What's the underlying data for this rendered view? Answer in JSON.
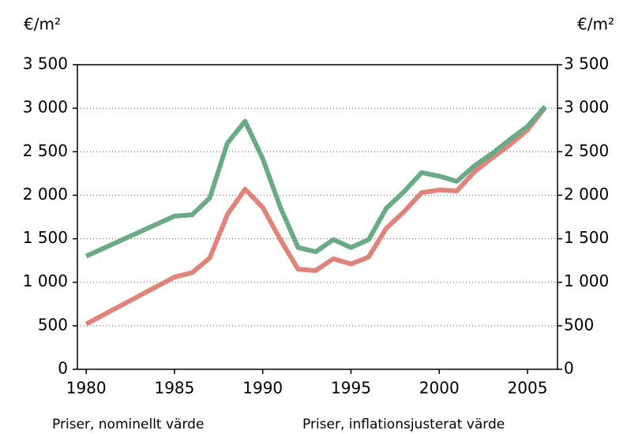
{
  "chart_data": {
    "type": "line",
    "y_label": "€/m²",
    "y2_label": "€/m²",
    "x": [
      1980,
      1985,
      1986,
      1987,
      1988,
      1989,
      1990,
      1991,
      1992,
      1993,
      1994,
      1995,
      1996,
      1997,
      1998,
      1999,
      2000,
      2001,
      2002,
      2003,
      2004,
      2005,
      2006
    ],
    "series": [
      {
        "name": "Priser, nominellt värde",
        "color": "#e0837a",
        "values": [
          520,
          1060,
          1110,
          1280,
          1780,
          2070,
          1860,
          1490,
          1150,
          1135,
          1270,
          1210,
          1290,
          1620,
          1810,
          2030,
          2060,
          2050,
          2270,
          2430,
          2580,
          2750,
          3010
        ]
      },
      {
        "name": "Priser, inflationsjusterat värde",
        "color": "#6aaa84",
        "values": [
          1300,
          1760,
          1775,
          1970,
          2600,
          2850,
          2420,
          1860,
          1400,
          1350,
          1490,
          1400,
          1490,
          1850,
          2040,
          2260,
          2220,
          2160,
          2340,
          2480,
          2640,
          2790,
          3020
        ]
      }
    ],
    "xlim": [
      1979.5,
      2006.7
    ],
    "xticks": [
      1980,
      1985,
      1990,
      1995,
      2000,
      2005
    ],
    "ylim": [
      0,
      3500
    ],
    "yticks": [
      0,
      500,
      {
        "value": 1000,
        "label": "1 000"
      },
      {
        "value": 1500,
        "label": "1 500"
      },
      {
        "value": 2000,
        "label": "2 000"
      },
      {
        "value": 2500,
        "label": "2 500"
      },
      {
        "value": 3000,
        "label": "3 000"
      },
      {
        "value": 3500,
        "label": "3 500"
      }
    ],
    "y2lim": [
      0,
      3500
    ],
    "y2ticks": [
      0,
      500,
      {
        "value": 1000,
        "label": "1 000"
      },
      {
        "value": 1500,
        "label": "1 500"
      },
      {
        "value": 2000,
        "label": "2 000"
      },
      {
        "value": 2500,
        "label": "2 500"
      },
      {
        "value": 3000,
        "label": "3 000"
      },
      {
        "value": 3500,
        "label": "3 500"
      }
    ],
    "grid": true
  }
}
